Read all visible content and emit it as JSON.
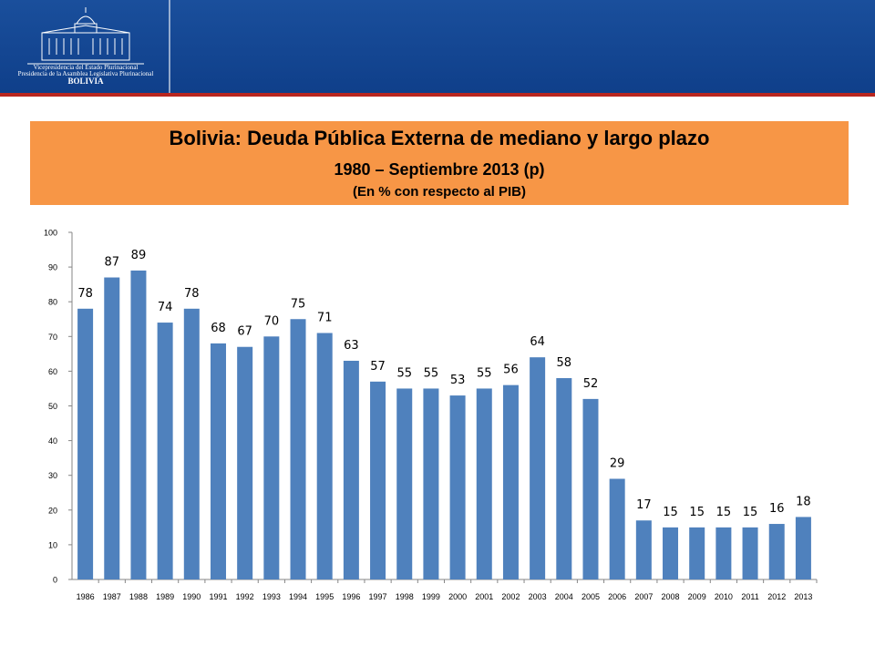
{
  "logo": {
    "line1": "Vicepresidencia del Estado Plurinacional",
    "line2": "Presidencia de la Asamblea Legislativa Plurinacional",
    "country": "BOLIVIA"
  },
  "colors": {
    "header": "#0f3f8a",
    "accent_line": "#b9261f",
    "title_box": "#f79646",
    "bar": "#4f81bd"
  },
  "chart_data": {
    "type": "bar",
    "title": "Bolivia: Deuda Pública Externa de mediano y largo plazo",
    "subtitle": "1980 – Septiembre 2013 (p)",
    "unit": "(En % con respecto al PIB)",
    "categories": [
      "1986",
      "1987",
      "1988",
      "1989",
      "1990",
      "1991",
      "1992",
      "1993",
      "1994",
      "1995",
      "1996",
      "1997",
      "1998",
      "1999",
      "2000",
      "2001",
      "2002",
      "2003",
      "2004",
      "2005",
      "2006",
      "2007",
      "2008",
      "2009",
      "2010",
      "2011",
      "2012",
      "2013"
    ],
    "values": [
      78,
      87,
      89,
      74,
      78,
      68,
      67,
      70,
      75,
      71,
      63,
      57,
      55,
      55,
      53,
      55,
      56,
      64,
      58,
      52,
      29,
      17,
      15,
      15,
      15,
      15,
      16,
      18
    ],
    "ylim": [
      0,
      100
    ],
    "yticks": [
      0,
      10,
      20,
      30,
      40,
      50,
      60,
      70,
      80,
      90,
      100
    ],
    "grid": false,
    "legend": "none",
    "data_labels": true
  }
}
